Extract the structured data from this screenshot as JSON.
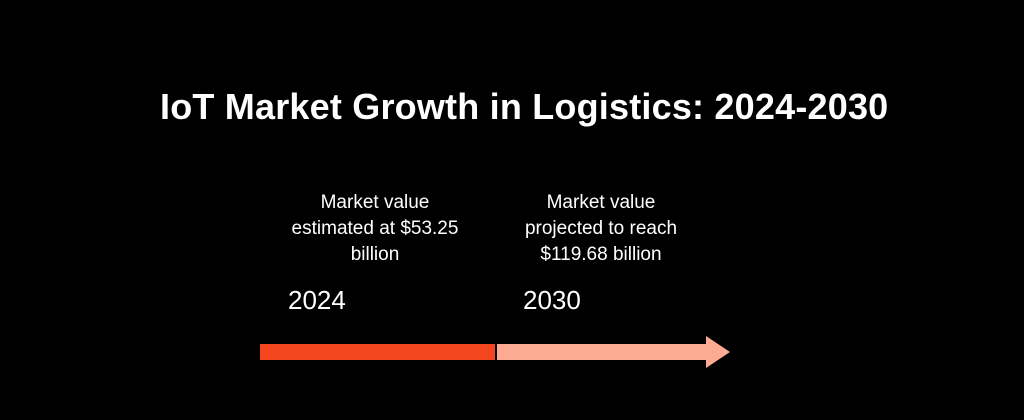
{
  "title": "IoT Market Growth in Logistics: 2024-2030",
  "milestones": [
    {
      "year": "2024",
      "lines": [
        "Market value",
        "estimated at $53.25",
        "billion"
      ]
    },
    {
      "year": "2030",
      "lines": [
        "Market value",
        "projected to reach",
        "$119.68 billion"
      ]
    }
  ],
  "colors": {
    "background": "#000000",
    "text": "#ffffff",
    "segment_first": "#f4461e",
    "segment_second": "#fcab92",
    "divider": "#000000"
  }
}
